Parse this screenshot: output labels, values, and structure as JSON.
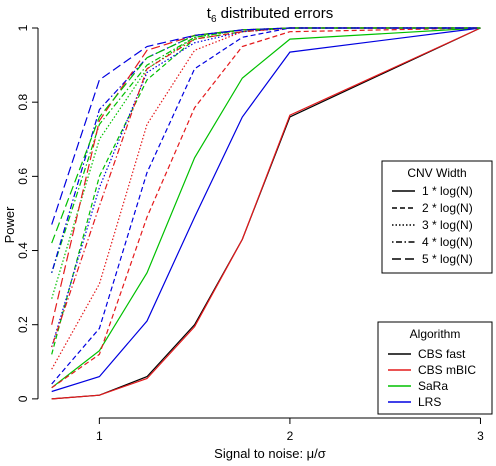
{
  "chart_data": {
    "type": "line",
    "title_main": "t",
    "title_sub": "6",
    "title_rest": " distributed errors",
    "xlabel": "Signal to noise: μ/σ",
    "ylabel": "Power",
    "xlim": [
      0.72,
      3.05
    ],
    "ylim": [
      -0.03,
      1.0
    ],
    "xticks": [
      1,
      2,
      3
    ],
    "yticks": [
      0,
      0.2,
      0.4,
      0.6,
      0.8,
      1
    ],
    "grid": false,
    "x": [
      0.75,
      1.0,
      1.25,
      1.5,
      1.75,
      2.0,
      3.0
    ],
    "legend_width": {
      "title": "CNV Width",
      "placement": "right-middle",
      "entries": [
        {
          "label": "1 * log(N)",
          "dash": "solid"
        },
        {
          "label": "2 * log(N)",
          "dash": "short-dash"
        },
        {
          "label": "3 * log(N)",
          "dash": "dotted"
        },
        {
          "label": "4 * log(N)",
          "dash": "dot-dash"
        },
        {
          "label": "5 * log(N)",
          "dash": "long-dash"
        }
      ]
    },
    "legend_algorithm": {
      "title": "Algorithm",
      "placement": "bottom-right",
      "entries": [
        {
          "label": "CBS fast",
          "color": "#000000"
        },
        {
          "label": "CBS mBIC",
          "color": "#e41a1c"
        },
        {
          "label": "SaRa",
          "color": "#00c000"
        },
        {
          "label": "LRS",
          "color": "#0000e0"
        }
      ]
    },
    "series": [
      {
        "algorithm": 0,
        "width": 0,
        "values": [
          0.0,
          0.01,
          0.06,
          0.2,
          0.43,
          0.76,
          1.0
        ]
      },
      {
        "algorithm": 1,
        "width": 0,
        "values": [
          0.0,
          0.01,
          0.055,
          0.195,
          0.43,
          0.765,
          1.0
        ]
      },
      {
        "algorithm": 2,
        "width": 0,
        "values": [
          0.03,
          0.13,
          0.34,
          0.65,
          0.865,
          0.97,
          1.0
        ]
      },
      {
        "algorithm": 3,
        "width": 0,
        "values": [
          0.02,
          0.06,
          0.21,
          0.49,
          0.76,
          0.935,
          1.0
        ]
      },
      {
        "algorithm": 1,
        "width": 1,
        "values": [
          0.03,
          0.12,
          0.49,
          0.785,
          0.95,
          0.99,
          1.0
        ]
      },
      {
        "algorithm": 2,
        "width": 1,
        "values": [
          0.12,
          0.6,
          0.86,
          0.97,
          0.99,
          1.0,
          1.0
        ]
      },
      {
        "algorithm": 3,
        "width": 1,
        "values": [
          0.04,
          0.19,
          0.61,
          0.89,
          0.975,
          1.0,
          1.0
        ]
      },
      {
        "algorithm": 1,
        "width": 2,
        "values": [
          0.08,
          0.31,
          0.74,
          0.94,
          0.99,
          1.0,
          1.0
        ]
      },
      {
        "algorithm": 2,
        "width": 2,
        "values": [
          0.27,
          0.7,
          0.89,
          0.975,
          0.995,
          1.0,
          1.0
        ]
      },
      {
        "algorithm": 3,
        "width": 2,
        "values": [
          0.14,
          0.57,
          0.88,
          0.96,
          0.99,
          1.0,
          1.0
        ]
      },
      {
        "algorithm": 1,
        "width": 3,
        "values": [
          0.14,
          0.52,
          0.89,
          0.97,
          0.99,
          1.0,
          1.0
        ]
      },
      {
        "algorithm": 2,
        "width": 3,
        "values": [
          0.34,
          0.74,
          0.9,
          0.975,
          0.995,
          1.0,
          1.0
        ]
      },
      {
        "algorithm": 3,
        "width": 3,
        "values": [
          0.34,
          0.78,
          0.92,
          0.98,
          0.995,
          1.0,
          1.0
        ]
      },
      {
        "algorithm": 1,
        "width": 4,
        "values": [
          0.2,
          0.75,
          0.94,
          0.98,
          0.995,
          1.0,
          1.0
        ]
      },
      {
        "algorithm": 2,
        "width": 4,
        "values": [
          0.42,
          0.76,
          0.92,
          0.98,
          0.995,
          1.0,
          1.0
        ]
      },
      {
        "algorithm": 3,
        "width": 4,
        "values": [
          0.47,
          0.86,
          0.95,
          0.98,
          0.995,
          1.0,
          1.0
        ]
      }
    ],
    "colors": {
      "axis": "#000000",
      "legend_border": "#000000"
    }
  }
}
